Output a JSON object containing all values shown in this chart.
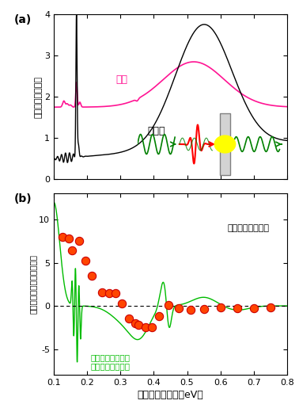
{
  "title_a": "(a)",
  "title_b": "(b)",
  "ylabel_a": "吸収（任意単位）",
  "ylabel_b": "吸収の変化量（任意単位）",
  "xlabel": "光子エネルギー（eV）",
  "label_metal": "金属",
  "label_insulator": "絶縁体",
  "label_diff": "金属相と絶縁体相\nの差分スペクトル",
  "label_thz": "テラヘルツパルス",
  "metal_color": "#FF1493",
  "insulator_color": "#000000",
  "diff_color": "#00BB00",
  "dot_color": "#FF4500",
  "dot_edge_color": "#CC0000",
  "xlim": [
    0.1,
    0.8
  ],
  "ylim_a": [
    0,
    4
  ],
  "ylim_b": [
    -8,
    13
  ],
  "yticks_a": [
    0,
    1,
    2,
    3,
    4
  ],
  "yticks_b": [
    -5,
    0,
    5,
    10
  ],
  "background": "#FFFFFF",
  "dot_data": [
    [
      0.125,
      8.0
    ],
    [
      0.145,
      7.8
    ],
    [
      0.155,
      6.4
    ],
    [
      0.175,
      7.5
    ],
    [
      0.195,
      5.2
    ],
    [
      0.215,
      3.5
    ],
    [
      0.245,
      1.6
    ],
    [
      0.265,
      1.5
    ],
    [
      0.285,
      1.5
    ],
    [
      0.305,
      0.3
    ],
    [
      0.325,
      -1.5
    ],
    [
      0.345,
      -2.0
    ],
    [
      0.355,
      -2.2
    ],
    [
      0.375,
      -2.5
    ],
    [
      0.395,
      -2.5
    ],
    [
      0.415,
      -1.2
    ],
    [
      0.445,
      0.1
    ],
    [
      0.475,
      -0.3
    ],
    [
      0.51,
      -0.5
    ],
    [
      0.55,
      -0.4
    ],
    [
      0.6,
      -0.2
    ],
    [
      0.65,
      -0.3
    ],
    [
      0.7,
      -0.3
    ],
    [
      0.75,
      -0.15
    ]
  ]
}
